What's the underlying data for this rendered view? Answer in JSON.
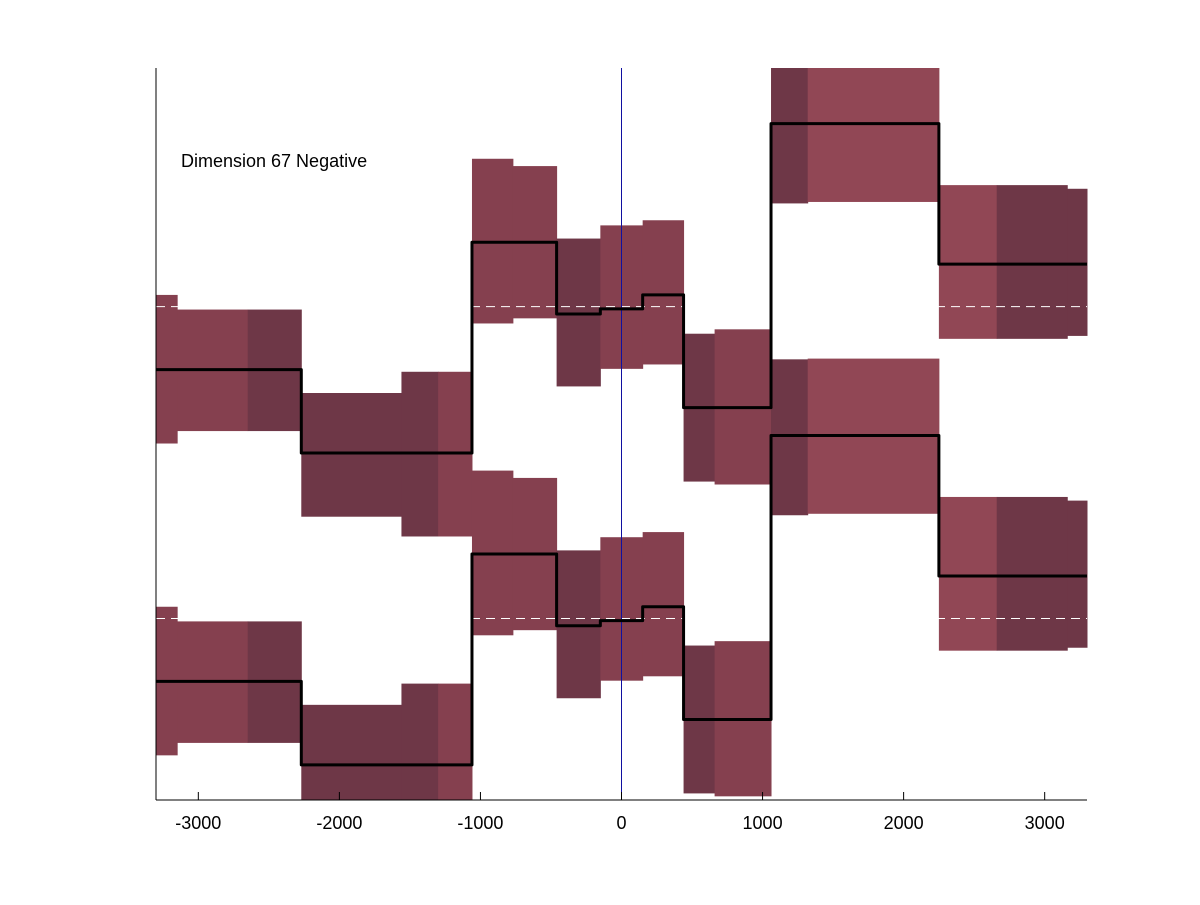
{
  "chart_data": {
    "type": "line",
    "annotation": "Dimension 67 Negative",
    "xlim": [
      -3300,
      3300
    ],
    "ylim": [
      0,
      1
    ],
    "grid": false,
    "x_ticks": [
      -3000,
      -2000,
      -1000,
      0,
      1000,
      2000,
      3000
    ],
    "x_tick_labels": [
      "-3000",
      "-2000",
      "-1000",
      "0",
      "1000",
      "2000",
      "3000"
    ],
    "vertical_reference_line": {
      "x": 0,
      "color": "#1010a0"
    },
    "colors": {
      "band": "#85404f",
      "band_dark": "#6e3747",
      "band_light": "#914755",
      "step_line": "#000000",
      "dashed_baseline": "#ffffff"
    },
    "series": [
      {
        "baseline": 0.674,
        "steps": [
          {
            "x0": -3300,
            "x1": -2270,
            "y": 0.588
          },
          {
            "x0": -2270,
            "x1": -1060,
            "y": 0.474
          },
          {
            "x0": -1060,
            "x1": -460,
            "y": 0.762
          },
          {
            "x0": -460,
            "x1": -150,
            "y": 0.664
          },
          {
            "x0": -150,
            "x1": 150,
            "y": 0.671
          },
          {
            "x0": 150,
            "x1": 440,
            "y": 0.69
          },
          {
            "x0": 440,
            "x1": 1060,
            "y": 0.536
          },
          {
            "x0": 1060,
            "x1": 2250,
            "y": 0.924
          },
          {
            "x0": 2250,
            "x1": 3300,
            "y": 0.732
          }
        ],
        "bands": [
          {
            "x0": -3300,
            "x1": -3150,
            "lo": 0.487,
            "hi": 0.69,
            "shade": "band"
          },
          {
            "x0": -3150,
            "x1": -2650,
            "lo": 0.504,
            "hi": 0.67,
            "shade": "band"
          },
          {
            "x0": -2650,
            "x1": -2270,
            "lo": 0.504,
            "hi": 0.67,
            "shade": "band_dark"
          },
          {
            "x0": -2270,
            "x1": -1560,
            "lo": 0.387,
            "hi": 0.556,
            "shade": "band_dark"
          },
          {
            "x0": -1560,
            "x1": -1300,
            "lo": 0.36,
            "hi": 0.585,
            "shade": "band_dark"
          },
          {
            "x0": -1300,
            "x1": -1060,
            "lo": 0.36,
            "hi": 0.585,
            "shade": "band"
          },
          {
            "x0": -1060,
            "x1": -770,
            "lo": 0.651,
            "hi": 0.876,
            "shade": "band"
          },
          {
            "x0": -770,
            "x1": -460,
            "lo": 0.658,
            "hi": 0.866,
            "shade": "band"
          },
          {
            "x0": -460,
            "x1": -150,
            "lo": 0.565,
            "hi": 0.767,
            "shade": "band_dark"
          },
          {
            "x0": -150,
            "x1": 150,
            "lo": 0.589,
            "hi": 0.785,
            "shade": "band"
          },
          {
            "x0": 150,
            "x1": 440,
            "lo": 0.595,
            "hi": 0.792,
            "shade": "band"
          },
          {
            "x0": 440,
            "x1": 660,
            "lo": 0.435,
            "hi": 0.637,
            "shade": "band_dark"
          },
          {
            "x0": 660,
            "x1": 1060,
            "lo": 0.431,
            "hi": 0.643,
            "shade": "band"
          },
          {
            "x0": 1060,
            "x1": 1320,
            "lo": 0.815,
            "hi": 1.0,
            "shade": "band_dark"
          },
          {
            "x0": 1320,
            "x1": 2250,
            "lo": 0.817,
            "hi": 1.0,
            "shade": "band_light"
          },
          {
            "x0": 2250,
            "x1": 2660,
            "lo": 0.63,
            "hi": 0.84,
            "shade": "band_light"
          },
          {
            "x0": 2660,
            "x1": 3160,
            "lo": 0.63,
            "hi": 0.84,
            "shade": "band_dark"
          },
          {
            "x0": 3160,
            "x1": 3300,
            "lo": 0.634,
            "hi": 0.835,
            "shade": "band_dark"
          }
        ]
      },
      {
        "baseline": 0.248,
        "steps": [
          {
            "x0": -3300,
            "x1": -2270,
            "y": 0.162
          },
          {
            "x0": -2270,
            "x1": -1060,
            "y": 0.048
          },
          {
            "x0": -1060,
            "x1": -460,
            "y": 0.336
          },
          {
            "x0": -460,
            "x1": -150,
            "y": 0.238
          },
          {
            "x0": -150,
            "x1": 150,
            "y": 0.245
          },
          {
            "x0": 150,
            "x1": 440,
            "y": 0.264
          },
          {
            "x0": 440,
            "x1": 1060,
            "y": 0.11
          },
          {
            "x0": 1060,
            "x1": 2250,
            "y": 0.498
          },
          {
            "x0": 2250,
            "x1": 3300,
            "y": 0.306
          }
        ],
        "bands": [
          {
            "x0": -3300,
            "x1": -3150,
            "lo": 0.061,
            "hi": 0.264,
            "shade": "band"
          },
          {
            "x0": -3150,
            "x1": -2650,
            "lo": 0.078,
            "hi": 0.244,
            "shade": "band"
          },
          {
            "x0": -2650,
            "x1": -2270,
            "lo": 0.078,
            "hi": 0.244,
            "shade": "band_dark"
          },
          {
            "x0": -2270,
            "x1": -1560,
            "lo": 0.0,
            "hi": 0.13,
            "shade": "band_dark"
          },
          {
            "x0": -1560,
            "x1": -1300,
            "lo": 0.0,
            "hi": 0.159,
            "shade": "band_dark"
          },
          {
            "x0": -1300,
            "x1": -1060,
            "lo": 0.0,
            "hi": 0.159,
            "shade": "band"
          },
          {
            "x0": -1060,
            "x1": -770,
            "lo": 0.225,
            "hi": 0.45,
            "shade": "band"
          },
          {
            "x0": -770,
            "x1": -460,
            "lo": 0.232,
            "hi": 0.44,
            "shade": "band"
          },
          {
            "x0": -460,
            "x1": -150,
            "lo": 0.139,
            "hi": 0.341,
            "shade": "band_dark"
          },
          {
            "x0": -150,
            "x1": 150,
            "lo": 0.163,
            "hi": 0.359,
            "shade": "band"
          },
          {
            "x0": 150,
            "x1": 440,
            "lo": 0.169,
            "hi": 0.366,
            "shade": "band"
          },
          {
            "x0": 440,
            "x1": 660,
            "lo": 0.009,
            "hi": 0.211,
            "shade": "band_dark"
          },
          {
            "x0": 660,
            "x1": 1060,
            "lo": 0.005,
            "hi": 0.217,
            "shade": "band"
          },
          {
            "x0": 1060,
            "x1": 1320,
            "lo": 0.389,
            "hi": 0.602,
            "shade": "band_dark"
          },
          {
            "x0": 1320,
            "x1": 2250,
            "lo": 0.391,
            "hi": 0.603,
            "shade": "band_light"
          },
          {
            "x0": 2250,
            "x1": 2660,
            "lo": 0.204,
            "hi": 0.414,
            "shade": "band_light"
          },
          {
            "x0": 2660,
            "x1": 3160,
            "lo": 0.204,
            "hi": 0.414,
            "shade": "band_dark"
          },
          {
            "x0": 3160,
            "x1": 3300,
            "lo": 0.208,
            "hi": 0.409,
            "shade": "band_dark"
          }
        ]
      }
    ]
  }
}
